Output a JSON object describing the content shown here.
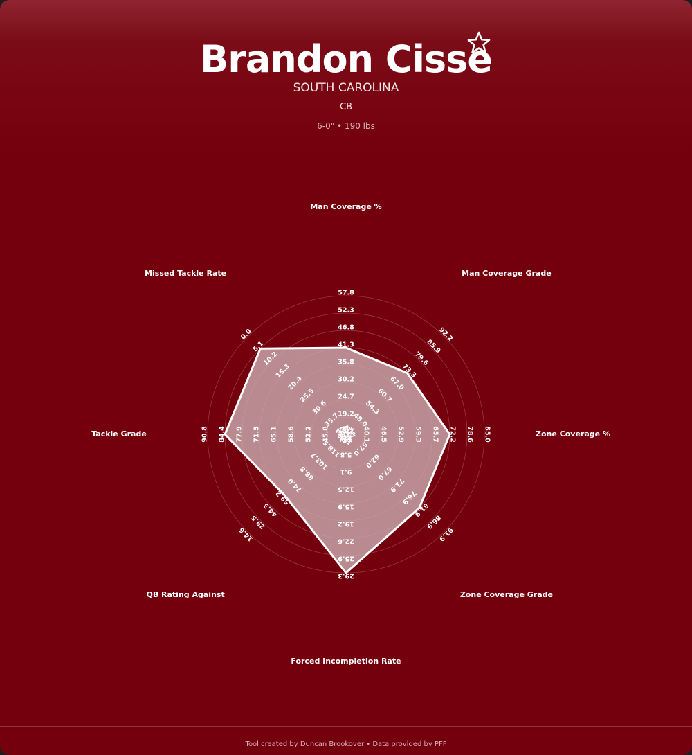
{
  "player": {
    "name": "Brandon Cisse",
    "school": "SOUTH CAROLINA",
    "position": "CB",
    "measurements": "6-0\" • 190 lbs"
  },
  "footer": {
    "credit": "Tool created by Duncan Brookover • Data provided by PFF"
  },
  "colors": {
    "background": "#75000d",
    "header_top": "#8e2530",
    "polygon_fill": "#c8a9ad",
    "polygon_stroke": "#ffffff",
    "grid": "#b06a70",
    "text": "#ffffff"
  },
  "icons": {
    "favorite": "star-outline-icon"
  },
  "chart_data": {
    "type": "radar",
    "grid_rings": 8,
    "axes": [
      {
        "label": "Man Coverage %",
        "ticks": [
          "13.7",
          "19.2",
          "24.7",
          "30.2",
          "35.8",
          "41.3",
          "46.8",
          "52.3",
          "57.8"
        ],
        "value_level": 4
      },
      {
        "label": "Man Coverage Grade",
        "ticks": [
          "41.7",
          "48.0",
          "54.3",
          "60.7",
          "67.0",
          "73.3",
          "79.6",
          "85.9",
          "92.2"
        ],
        "value_level": 4
      },
      {
        "label": "Zone Coverage %",
        "ticks": [
          "33.6",
          "40.1",
          "46.5",
          "52.9",
          "59.3",
          "65.7",
          "72.2",
          "78.6",
          "85.0"
        ],
        "value_level": 5
      },
      {
        "label": "Zone Coverage Grade",
        "ticks": [
          "52.0",
          "57.0",
          "62.0",
          "67.0",
          "71.9",
          "76.9",
          "81.9",
          "86.9",
          "91.9"
        ],
        "value_level": 5
      },
      {
        "label": "Forced Incompletion Rate",
        "ticks": [
          "2.4",
          "5.8",
          "9.1",
          "12.5",
          "15.9",
          "19.2",
          "22.6",
          "25.9",
          "29.3"
        ],
        "value_level": 7
      },
      {
        "label": "QB Rating Against",
        "ticks": [
          "133.4",
          "118.5",
          "103.7",
          "88.8",
          "74.0",
          "59.2",
          "44.3",
          "29.5",
          "14.6"
        ],
        "value_level": 4
      },
      {
        "label": "Tackle Grade",
        "ticks": [
          "39.4",
          "45.8",
          "52.2",
          "58.6",
          "65.1",
          "71.5",
          "77.9",
          "84.4",
          "90.8"
        ],
        "value_level": 6
      },
      {
        "label": "Missed Tackle Rate",
        "ticks": [
          "40.8",
          "35.7",
          "30.6",
          "25.5",
          "20.4",
          "15.3",
          "10.2",
          "5.1",
          "0.0"
        ],
        "value_level": 6
      }
    ]
  }
}
